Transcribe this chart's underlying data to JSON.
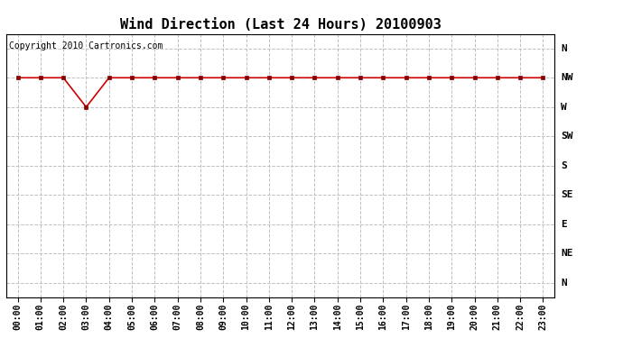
{
  "title": "Wind Direction (Last 24 Hours) 20100903",
  "copyright_text": "Copyright 2010 Cartronics.com",
  "background_color": "#ffffff",
  "plot_bg_color": "#ffffff",
  "line_color": "#cc0000",
  "marker_color": "#880000",
  "grid_color": "#c0c0c0",
  "y_labels_top_to_bottom": [
    "N",
    "NW",
    "W",
    "SW",
    "S",
    "SE",
    "E",
    "NE",
    "N"
  ],
  "hours": [
    0,
    1,
    2,
    3,
    4,
    5,
    6,
    7,
    8,
    9,
    10,
    11,
    12,
    13,
    14,
    15,
    16,
    17,
    18,
    19,
    20,
    21,
    22,
    23
  ],
  "wind_values": [
    7,
    7,
    7,
    6,
    7,
    7,
    7,
    7,
    7,
    7,
    7,
    7,
    7,
    7,
    7,
    7,
    7,
    7,
    7,
    7,
    7,
    7,
    7,
    7
  ],
  "x_tick_labels": [
    "00:00",
    "01:00",
    "02:00",
    "03:00",
    "04:00",
    "05:00",
    "06:00",
    "07:00",
    "08:00",
    "09:00",
    "10:00",
    "11:00",
    "12:00",
    "13:00",
    "14:00",
    "15:00",
    "16:00",
    "17:00",
    "18:00",
    "19:00",
    "20:00",
    "21:00",
    "22:00",
    "23:00"
  ],
  "title_fontsize": 11,
  "copyright_fontsize": 7,
  "tick_fontsize": 7,
  "y_tick_fontsize": 8
}
